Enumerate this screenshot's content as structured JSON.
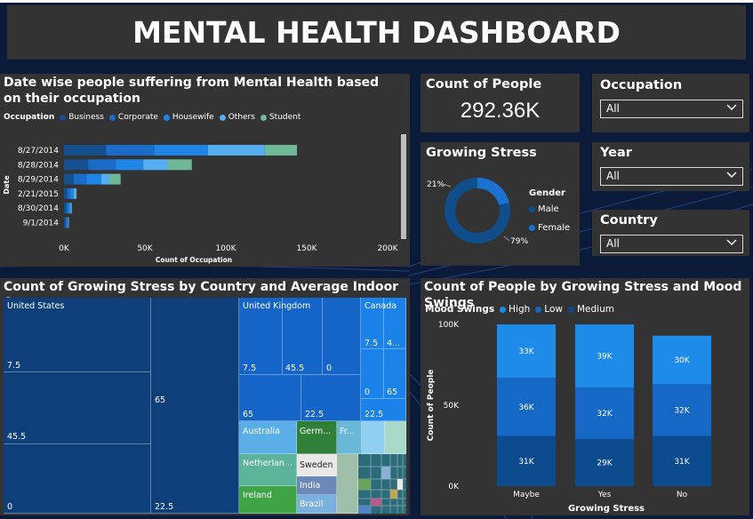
{
  "dashboard": {
    "title": "MENTAL HEALTH DASHBOARD"
  },
  "colors": {
    "background": "#0c1a3a",
    "panel": "#333333",
    "business": "#164f8f",
    "corporate": "#1a6cc8",
    "housewife": "#1f86e8",
    "others": "#54aef0",
    "student": "#6fb898",
    "male": "#104e8b",
    "female": "#1a73d1",
    "high": "#1e8be8",
    "low": "#1568c4",
    "medium": "#0c4b8e"
  },
  "occupation_chart": {
    "title": "Date wise people suffering from Mental Health based on their occupation",
    "legend_title": "Occupation",
    "ylabel": "Date",
    "xlabel": "Count of Occupation",
    "chart_data": {
      "type": "bar",
      "orientation": "horizontal-stacked",
      "categories": [
        "8/27/2014",
        "8/28/2014",
        "8/29/2014",
        "2/21/2015",
        "8/30/2014",
        "9/1/2014"
      ],
      "series": [
        {
          "name": "Business",
          "values": [
            26000,
            15000,
            6000,
            2000,
            1500,
            1000
          ]
        },
        {
          "name": "Corporate",
          "values": [
            30000,
            17000,
            8000,
            2000,
            1200,
            800
          ]
        },
        {
          "name": "Housewife",
          "values": [
            33000,
            17000,
            9000,
            2000,
            1200,
            800
          ]
        },
        {
          "name": "Others",
          "values": [
            35000,
            15000,
            5000,
            1200,
            600,
            300
          ]
        },
        {
          "name": "Student",
          "values": [
            20000,
            15000,
            7000,
            600,
            300,
            200
          ]
        }
      ],
      "xticks": [
        "0K",
        "50K",
        "100K",
        "150K",
        "200K"
      ],
      "xlim": [
        0,
        200000
      ]
    }
  },
  "count_card": {
    "title": "Count of People",
    "value": "292.36K"
  },
  "growing_stress": {
    "title": "Growing Stress",
    "legend_title": "Gender",
    "chart_data": {
      "type": "pie",
      "labels": [
        "Male",
        "Female"
      ],
      "values": [
        79,
        21
      ],
      "data_labels": [
        "79%",
        "21%"
      ]
    }
  },
  "filters": {
    "occupation": {
      "label": "Occupation",
      "value": "All"
    },
    "year": {
      "label": "Year",
      "value": "All"
    },
    "country": {
      "label": "Country",
      "value": "All"
    }
  },
  "treemap": {
    "title": "Count of Growing Stress by Country and Average Indoor Stay",
    "countries": [
      "United States",
      "United Kingdom",
      "Canada",
      "Australia",
      "Germ...",
      "Fr...",
      "Netherlan...",
      "Sweden",
      "Ireland",
      "India",
      "Brazil"
    ],
    "values": [
      "7.5",
      "45.5",
      "0",
      "65",
      "22.5",
      "7.5",
      "45.5",
      "0",
      "65",
      "22.5",
      "7.5",
      "4...",
      "0",
      "65",
      "22.5"
    ]
  },
  "mood_chart": {
    "title": "Count of People by Growing Stress and Mood Swings",
    "legend_title": "Mood Swings",
    "ylabel": "Count of People",
    "xlabel": "Growing Stress",
    "chart_data": {
      "type": "bar",
      "orientation": "vertical-stacked",
      "categories": [
        "Maybe",
        "Yes",
        "No"
      ],
      "series": [
        {
          "name": "Medium",
          "values": [
            31000,
            29000,
            31000
          ],
          "labels": [
            "31K",
            "29K",
            "31K"
          ]
        },
        {
          "name": "Low",
          "values": [
            36000,
            32000,
            32000
          ],
          "labels": [
            "36K",
            "32K",
            "32K"
          ]
        },
        {
          "name": "High",
          "values": [
            33000,
            39000,
            30000
          ],
          "labels": [
            "33K",
            "39K",
            "30K"
          ]
        }
      ],
      "legend_order": [
        "High",
        "Low",
        "Medium"
      ],
      "yticks": [
        "0K",
        "50K",
        "100K"
      ],
      "ylim": [
        0,
        100000
      ]
    }
  }
}
